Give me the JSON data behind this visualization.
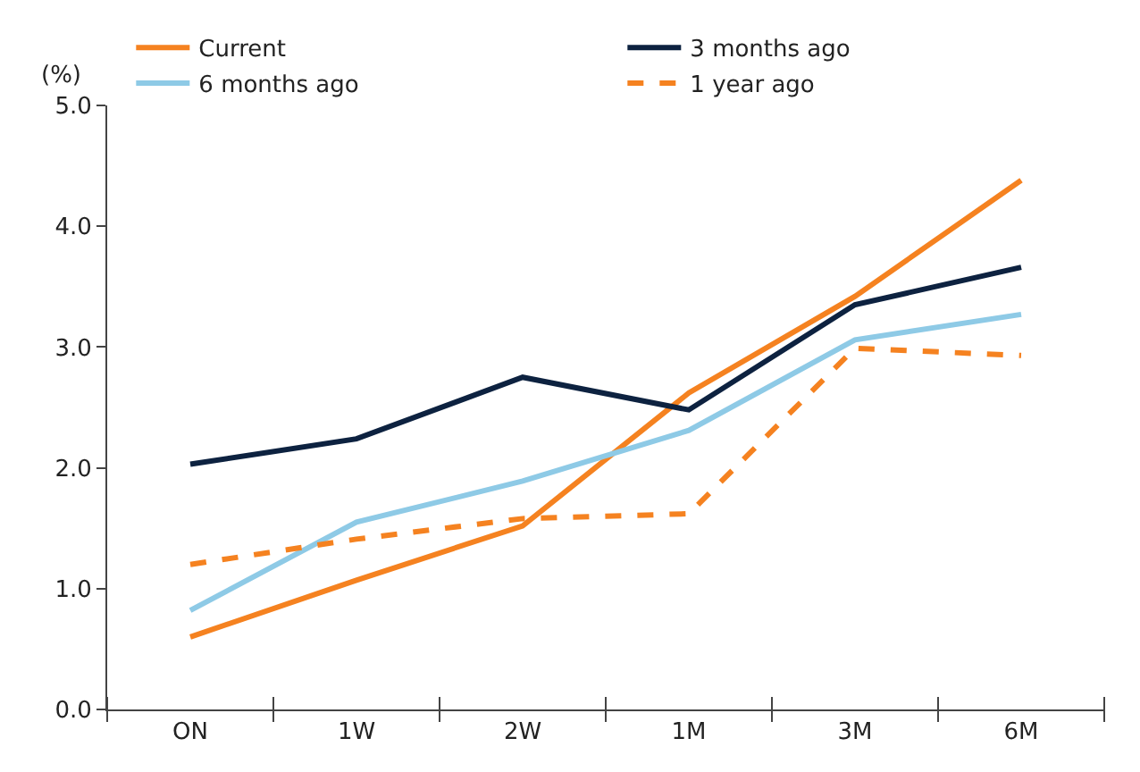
{
  "chart_data": {
    "type": "line",
    "ylabel": "(%)",
    "categories": [
      "ON",
      "1W",
      "2W",
      "1M",
      "3M",
      "6M"
    ],
    "series": [
      {
        "name": "Current",
        "color": "#f58220",
        "values": [
          0.6,
          1.07,
          1.52,
          2.62,
          3.42,
          4.38
        ]
      },
      {
        "name": "3 months ago",
        "color": "#0d2240",
        "values": [
          2.03,
          2.24,
          2.75,
          2.48,
          3.35,
          3.66
        ]
      },
      {
        "name": "6 months ago",
        "color": "#8ecae6",
        "values": [
          0.82,
          1.55,
          1.89,
          2.31,
          3.06,
          3.27
        ]
      },
      {
        "name": "1 year ago",
        "color": "#f58220",
        "line_style": "dashed",
        "values": [
          1.2,
          1.41,
          1.58,
          1.62,
          2.99,
          2.93
        ]
      }
    ],
    "ylim": [
      0,
      5
    ],
    "yticks": [
      {
        "value": 0,
        "label": "0.0"
      },
      {
        "value": 1,
        "label": "1.0"
      },
      {
        "value": 2,
        "label": "2.0"
      },
      {
        "value": 3,
        "label": "3.0"
      },
      {
        "value": 4,
        "label": "4.0"
      },
      {
        "value": 5,
        "label": "5.0"
      }
    ],
    "legend": "top",
    "marker": "none"
  }
}
